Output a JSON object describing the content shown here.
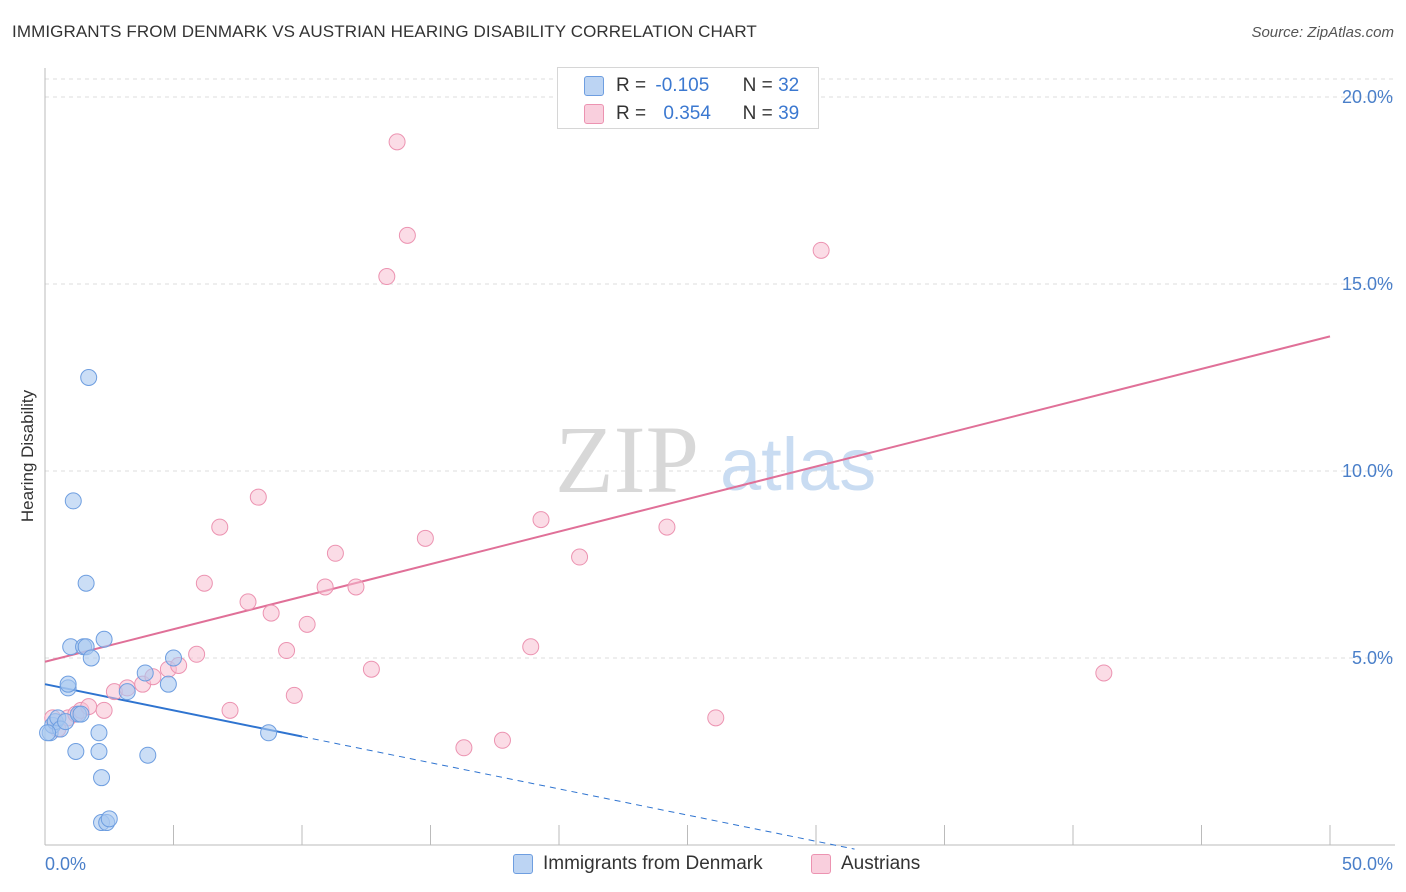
{
  "header": {
    "title": "IMMIGRANTS FROM DENMARK VS AUSTRIAN HEARING DISABILITY CORRELATION CHART",
    "source": "Source: ZipAtlas.com"
  },
  "watermark": {
    "zip": "ZIP",
    "atlas": "atlas"
  },
  "legend_top": {
    "rows": [
      {
        "r_label": "R =",
        "r_value": "-0.105",
        "n_label": "N =",
        "n_value": "32"
      },
      {
        "r_label": "R =",
        "r_value": "0.354",
        "n_label": "N =",
        "n_value": "39"
      }
    ]
  },
  "legend_bottom": {
    "items": [
      {
        "label": "Immigrants from Denmark"
      },
      {
        "label": "Austrians"
      }
    ]
  },
  "colors": {
    "blue_fill": "#a9c8f0",
    "blue_stroke": "#6e9ee0",
    "blue_line": "#2f74d0",
    "pink_fill": "#f7bfd1",
    "pink_stroke": "#ec93b1",
    "pink_line": "#e07098",
    "grid": "#dcdcdc",
    "tick_text": "#4a7fc9"
  },
  "chart_data": {
    "type": "scatter",
    "title": "IMMIGRANTS FROM DENMARK VS AUSTRIAN HEARING DISABILITY CORRELATION CHART",
    "xlabel": "",
    "ylabel": "Hearing Disability",
    "xlim": [
      0,
      50
    ],
    "ylim": [
      0,
      20
    ],
    "x_tick_labels": [
      "0.0%",
      "50.0%"
    ],
    "y_ticks": [
      5,
      10,
      15,
      20
    ],
    "y_tick_labels": [
      "5.0%",
      "10.0%",
      "15.0%",
      "20.0%"
    ],
    "grid": true,
    "legend_position": "top-center",
    "series": [
      {
        "name": "Immigrants from Denmark",
        "color": "#a9c8f0",
        "r": -0.105,
        "n": 32,
        "trend": {
          "x0": 0,
          "y0": 4.3,
          "x1": 10,
          "y1": 2.9,
          "dashed_to_x": 31.5
        },
        "points": [
          [
            0.2,
            3.0
          ],
          [
            0.3,
            3.2
          ],
          [
            0.4,
            3.3
          ],
          [
            0.5,
            3.4
          ],
          [
            0.6,
            3.1
          ],
          [
            0.8,
            3.3
          ],
          [
            0.9,
            4.2
          ],
          [
            0.9,
            4.3
          ],
          [
            1.0,
            5.3
          ],
          [
            1.1,
            9.2
          ],
          [
            1.2,
            2.5
          ],
          [
            1.3,
            3.5
          ],
          [
            1.4,
            3.5
          ],
          [
            1.5,
            5.3
          ],
          [
            1.6,
            5.3
          ],
          [
            1.6,
            7.0
          ],
          [
            1.7,
            12.5
          ],
          [
            1.8,
            5.0
          ],
          [
            2.1,
            3.0
          ],
          [
            2.1,
            2.5
          ],
          [
            2.2,
            0.6
          ],
          [
            2.2,
            1.8
          ],
          [
            2.3,
            5.5
          ],
          [
            2.4,
            0.6
          ],
          [
            2.5,
            0.7
          ],
          [
            3.2,
            4.1
          ],
          [
            3.9,
            4.6
          ],
          [
            4.0,
            2.4
          ],
          [
            4.8,
            4.3
          ],
          [
            5.0,
            5.0
          ],
          [
            8.7,
            3.0
          ],
          [
            0.1,
            3.0
          ]
        ]
      },
      {
        "name": "Austrians",
        "color": "#f7bfd1",
        "r": 0.354,
        "n": 39,
        "trend": {
          "x0": 0,
          "y0": 4.9,
          "x1": 50,
          "y1": 13.6
        },
        "points": [
          [
            0.3,
            3.4
          ],
          [
            0.5,
            3.1
          ],
          [
            0.9,
            3.4
          ],
          [
            1.2,
            3.5
          ],
          [
            1.4,
            3.6
          ],
          [
            1.7,
            3.7
          ],
          [
            2.3,
            3.6
          ],
          [
            2.7,
            4.1
          ],
          [
            3.2,
            4.2
          ],
          [
            3.8,
            4.3
          ],
          [
            4.2,
            4.5
          ],
          [
            4.8,
            4.7
          ],
          [
            5.2,
            4.8
          ],
          [
            5.9,
            5.1
          ],
          [
            6.2,
            7.0
          ],
          [
            6.8,
            8.5
          ],
          [
            7.2,
            3.6
          ],
          [
            7.9,
            6.5
          ],
          [
            8.3,
            9.3
          ],
          [
            8.8,
            6.2
          ],
          [
            9.4,
            5.2
          ],
          [
            9.7,
            4.0
          ],
          [
            10.2,
            5.9
          ],
          [
            10.9,
            6.9
          ],
          [
            11.3,
            7.8
          ],
          [
            12.1,
            6.9
          ],
          [
            12.7,
            4.7
          ],
          [
            13.3,
            15.2
          ],
          [
            13.7,
            18.8
          ],
          [
            14.1,
            16.3
          ],
          [
            14.8,
            8.2
          ],
          [
            16.3,
            2.6
          ],
          [
            17.8,
            2.8
          ],
          [
            18.9,
            5.3
          ],
          [
            19.3,
            8.7
          ],
          [
            20.8,
            7.7
          ],
          [
            24.2,
            8.5
          ],
          [
            26.1,
            3.4
          ],
          [
            30.2,
            15.9
          ]
        ]
      }
    ],
    "extra_austrian_point": [
      41.2,
      4.6
    ]
  }
}
